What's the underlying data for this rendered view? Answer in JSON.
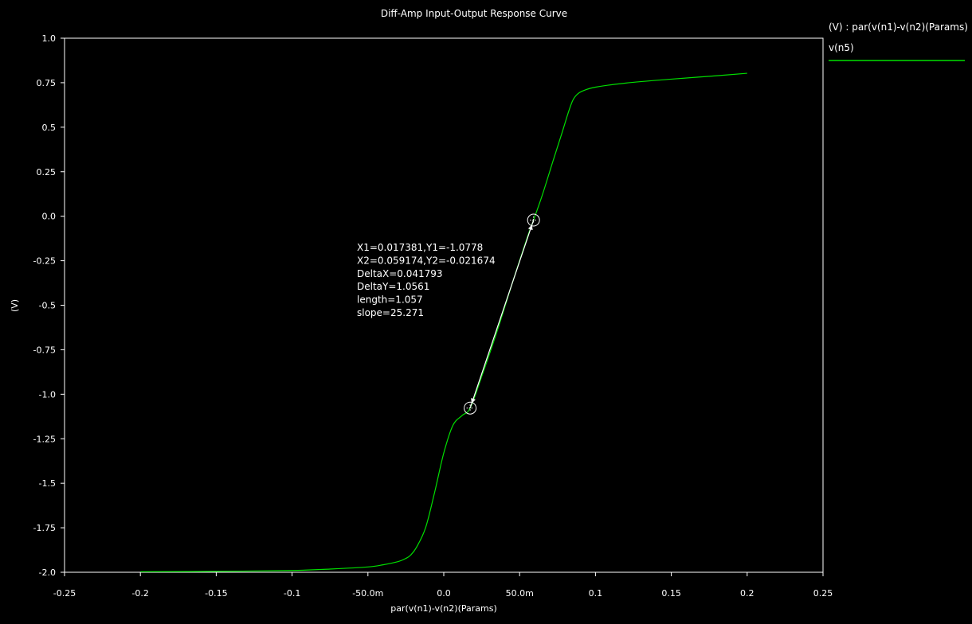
{
  "chart_data": {
    "type": "line",
    "title": "Diff-Amp Input-Output Response Curve",
    "xlabel": "par(v(n1)-v(n2)(Params)",
    "ylabel": "(V)",
    "xlim": [
      -0.25,
      0.25
    ],
    "ylim": [
      -2.0,
      1.0
    ],
    "x_ticks": [
      -0.25,
      -0.2,
      -0.15,
      -0.1,
      -0.05,
      0,
      0.05,
      0.1,
      0.15,
      0.2,
      0.25
    ],
    "x_tick_labels": [
      "-0.25",
      "-0.2",
      "-0.15",
      "-0.1",
      "-50.0m",
      "0.0",
      "50.0m",
      "0.1",
      "0.15",
      "0.2",
      "0.25"
    ],
    "y_ticks": [
      1.0,
      0.75,
      0.5,
      0.25,
      0.0,
      -0.25,
      -0.5,
      -0.75,
      -1.0,
      -1.25,
      -1.5,
      -1.75,
      -2.0
    ],
    "y_tick_labels": [
      "1.0",
      "0.75",
      "0.5",
      "0.25",
      "0.0",
      "-0.25",
      "-0.5",
      "-0.75",
      "-1.0",
      "-1.25",
      "-1.5",
      "-1.75",
      "-2.0"
    ],
    "grid": false,
    "legend_position": "right",
    "legend_header": "(V) : par(v(n1)-v(n2)(Params)",
    "series": [
      {
        "name": "v(n5)",
        "color": "#00e000",
        "x": [
          -0.2,
          -0.15,
          -0.1,
          -0.075,
          -0.05,
          -0.04,
          -0.03,
          -0.025,
          -0.022,
          -0.018,
          -0.012,
          -0.006,
          0.0,
          0.006,
          0.012,
          0.017381,
          0.025,
          0.035,
          0.045,
          0.055,
          0.059174,
          0.065,
          0.072,
          0.078,
          0.082,
          0.085,
          0.088,
          0.092,
          0.1,
          0.12,
          0.15,
          0.175,
          0.2
        ],
        "y": [
          -1.997,
          -1.995,
          -1.99,
          -1.982,
          -1.97,
          -1.958,
          -1.94,
          -1.922,
          -1.905,
          -1.86,
          -1.75,
          -1.55,
          -1.33,
          -1.175,
          -1.12,
          -1.0778,
          -0.9,
          -0.65,
          -0.38,
          -0.12,
          -0.021674,
          0.12,
          0.31,
          0.47,
          0.58,
          0.65,
          0.685,
          0.705,
          0.725,
          0.748,
          0.77,
          0.786,
          0.803
        ]
      }
    ],
    "annotations": {
      "cursor_points": [
        {
          "x": 0.017381,
          "y": -1.0778
        },
        {
          "x": 0.059174,
          "y": -0.021674
        }
      ],
      "lines": [
        "X1=0.017381,Y1=-1.0778",
        "X2=0.059174,Y2=-0.021674",
        "DeltaX=0.041793",
        "DeltaY=1.0561",
        "length=1.057",
        "slope=25.271"
      ]
    }
  }
}
